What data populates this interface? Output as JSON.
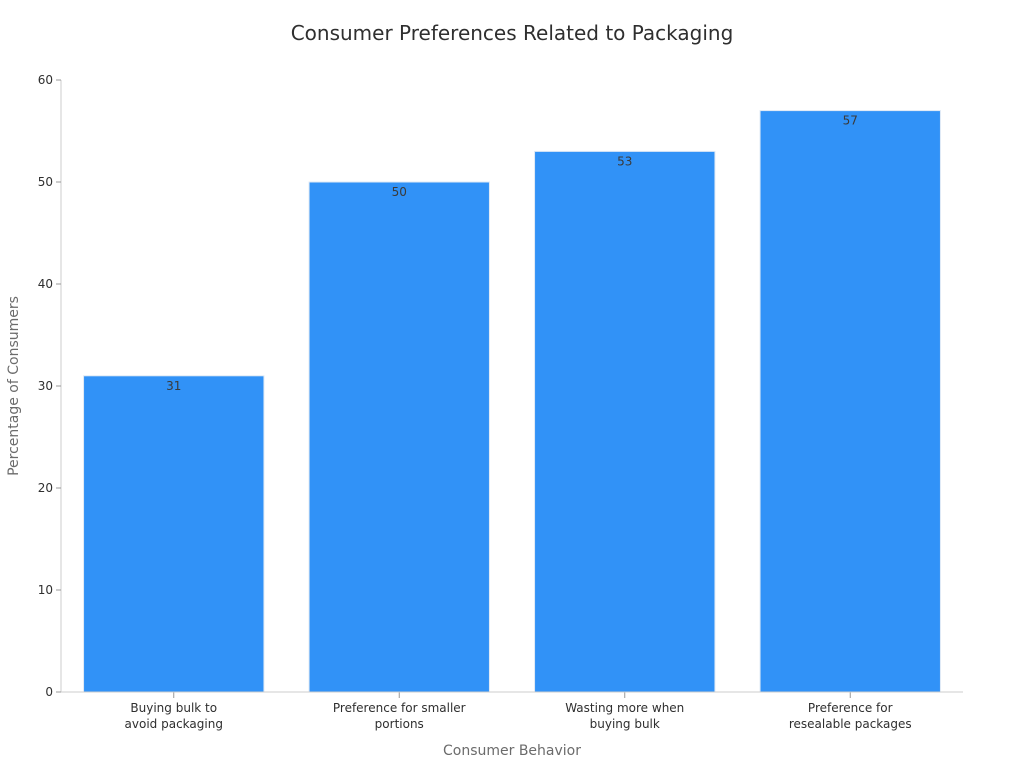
{
  "chart_data": {
    "type": "bar",
    "title": "Consumer Preferences Related to Packaging",
    "xlabel": "Consumer Behavior",
    "ylabel": "Percentage of Consumers",
    "categories": [
      [
        "Buying bulk to",
        "avoid packaging"
      ],
      [
        "Preference for smaller",
        "portions"
      ],
      [
        "Wasting more when",
        "buying bulk"
      ],
      [
        "Preference for",
        "resealable packages"
      ]
    ],
    "values": [
      31,
      50,
      53,
      57
    ],
    "data_labels": [
      "31",
      "50",
      "53",
      "57"
    ],
    "ylim": [
      0,
      60
    ],
    "yticks": [
      0,
      10,
      20,
      30,
      40,
      50,
      60
    ],
    "bar_color": "#3192f7",
    "grid": false,
    "legend": "none"
  }
}
